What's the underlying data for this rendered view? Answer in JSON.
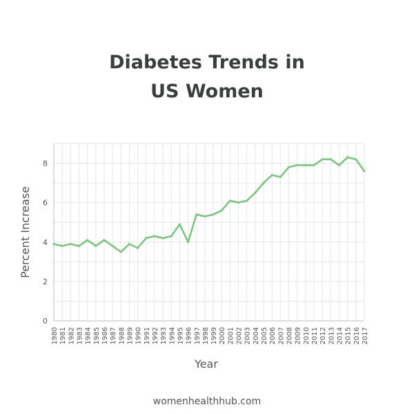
{
  "header": {
    "title_line1": "Diabetes Trends in",
    "title_line2": "US Women"
  },
  "footer": {
    "site": "womenhealthhub.com"
  },
  "colors": {
    "line": "#7cc47f",
    "grid": "#e6e6e6",
    "axis": "#bdbdbd",
    "text": "#555555",
    "title": "#3a3f3e"
  },
  "chart_data": {
    "type": "line",
    "title": "Diabetes Trends in US Women",
    "xlabel": "Year",
    "ylabel": "Percent Increase",
    "ylim": [
      0,
      9
    ],
    "yticks": [
      0,
      2,
      4,
      6,
      8
    ],
    "grid": true,
    "legend": "none",
    "x": [
      "1980",
      "1981",
      "1982",
      "1983",
      "1984",
      "1985",
      "1986",
      "1987",
      "1988",
      "1989",
      "1990",
      "1991",
      "1992",
      "1993",
      "1994",
      "1995",
      "1996",
      "1997",
      "1998",
      "1999",
      "2000",
      "2001",
      "2002",
      "2003",
      "2004",
      "2005",
      "2006",
      "2007",
      "2008",
      "2009",
      "2010",
      "2011",
      "2012",
      "2013",
      "2014",
      "2015",
      "2016",
      "2017"
    ],
    "series": [
      {
        "values": [
          3.9,
          3.8,
          3.9,
          3.8,
          4.1,
          3.8,
          4.1,
          3.8,
          3.5,
          3.9,
          3.7,
          4.2,
          4.3,
          4.2,
          4.3,
          4.9,
          4.0,
          5.4,
          5.3,
          5.4,
          5.6,
          6.1,
          6.0,
          6.1,
          6.5,
          7.0,
          7.4,
          7.3,
          7.8,
          7.9,
          7.9,
          7.9,
          8.2,
          8.2,
          7.9,
          8.3,
          8.2,
          7.6
        ]
      }
    ]
  }
}
